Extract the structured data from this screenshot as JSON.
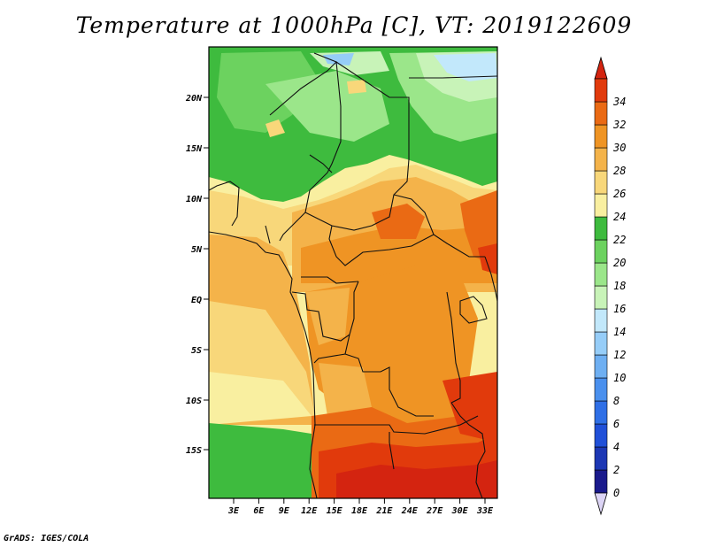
{
  "title": "Temperature at 1000hPa [C], VT: 2019122609",
  "footer": "GrADS: IGES/COLA",
  "map": {
    "lat_ticks": [
      "20N",
      "15N",
      "10N",
      "5N",
      "EQ",
      "5S",
      "10S",
      "15S"
    ],
    "lon_ticks": [
      "3E",
      "6E",
      "9E",
      "12E",
      "15E",
      "18E",
      "21E",
      "24E",
      "27E",
      "30E",
      "33E"
    ]
  },
  "colorbar": {
    "labels": [
      "0",
      "2",
      "4",
      "6",
      "8",
      "10",
      "12",
      "14",
      "16",
      "18",
      "20",
      "22",
      "24",
      "26",
      "28",
      "30",
      "32",
      "34"
    ],
    "colors": [
      "#1a1a8c",
      "#1c37b4",
      "#2050d8",
      "#2f6fe6",
      "#4a90ee",
      "#6eaff2",
      "#96cdf8",
      "#c2e8fb",
      "#c8f3b8",
      "#9be68a",
      "#6cd25f",
      "#3ebb3e",
      "#f9efa0",
      "#f8d77a",
      "#f4b34a",
      "#ef9424",
      "#ea6a14",
      "#e13a0c"
    ],
    "low_color": "#dcd4f5",
    "high_color": "#d42410"
  }
}
